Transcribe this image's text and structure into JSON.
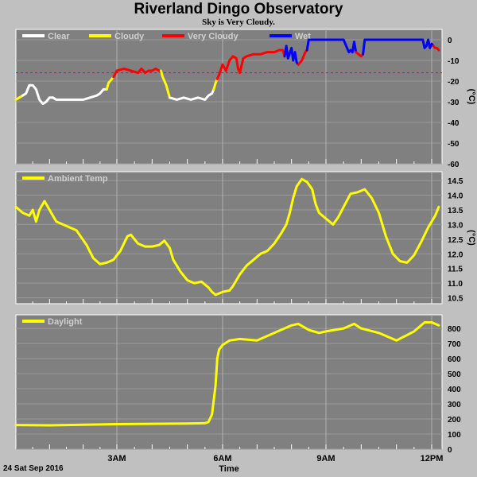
{
  "title": "Riverland Dingo Observatory",
  "subtitle": "Sky is Very Cloudy.",
  "footer": {
    "date": "24 Sat Sep 2016",
    "xlabel": "Time"
  },
  "x_ticks": [
    {
      "label": "3AM",
      "hour": 3
    },
    {
      "label": "6AM",
      "hour": 6
    },
    {
      "label": "9AM",
      "hour": 9
    },
    {
      "label": "12PM",
      "hour": 12
    }
  ],
  "chart_data": [
    {
      "type": "line",
      "id": "sky",
      "xlim": [
        0,
        12.25
      ],
      "ylim": [
        -60,
        5
      ],
      "ylabel": "(°C)",
      "yticks": [
        0,
        -10,
        -20,
        -30,
        -40,
        -50,
        -60
      ],
      "grid": true,
      "threshold_line": {
        "y": -16,
        "color": "#ff0000",
        "style": "dashed"
      },
      "legend": [
        {
          "name": "Clear",
          "color": "#ffffff"
        },
        {
          "name": "Cloudy",
          "color": "#ffff00"
        },
        {
          "name": "Very Cloudy",
          "color": "#ff0000"
        },
        {
          "name": "Wet",
          "color": "#0000ff"
        }
      ],
      "series": [
        {
          "name": "Cloudy",
          "color": "#ffff00",
          "points": [
            [
              0.0,
              -29
            ],
            [
              0.1,
              -28
            ],
            [
              0.2,
              -27
            ]
          ]
        },
        {
          "name": "Clear",
          "color": "#ffffff",
          "points": [
            [
              0.2,
              -27
            ],
            [
              0.3,
              -26
            ],
            [
              0.4,
              -22
            ],
            [
              0.5,
              -22
            ],
            [
              0.6,
              -24
            ],
            [
              0.7,
              -29
            ],
            [
              0.8,
              -31
            ],
            [
              0.9,
              -30
            ],
            [
              1.0,
              -28
            ],
            [
              1.1,
              -28
            ],
            [
              1.2,
              -29
            ],
            [
              1.5,
              -29
            ],
            [
              1.8,
              -29
            ],
            [
              2.0,
              -29
            ],
            [
              2.2,
              -28
            ],
            [
              2.4,
              -27
            ],
            [
              2.5,
              -26
            ],
            [
              2.6,
              -24
            ],
            [
              2.7,
              -24
            ]
          ]
        },
        {
          "name": "Cloudy",
          "color": "#ffff00",
          "points": [
            [
              2.7,
              -24
            ],
            [
              2.75,
              -21
            ],
            [
              2.85,
              -19
            ],
            [
              2.9,
              -18
            ]
          ]
        },
        {
          "name": "Very Cloudy",
          "color": "#ff0000",
          "points": [
            [
              2.9,
              -18
            ],
            [
              3.0,
              -15
            ],
            [
              3.2,
              -14
            ],
            [
              3.4,
              -15
            ],
            [
              3.6,
              -16
            ],
            [
              3.7,
              -14
            ],
            [
              3.8,
              -16
            ],
            [
              3.9,
              -15
            ],
            [
              4.0,
              -15
            ],
            [
              4.1,
              -14
            ],
            [
              4.2,
              -15
            ],
            [
              4.25,
              -15
            ]
          ]
        },
        {
          "name": "Cloudy",
          "color": "#ffff00",
          "points": [
            [
              4.25,
              -15
            ],
            [
              4.3,
              -18
            ],
            [
              4.4,
              -22
            ],
            [
              4.5,
              -28
            ]
          ]
        },
        {
          "name": "Clear",
          "color": "#ffffff",
          "points": [
            [
              4.5,
              -28
            ],
            [
              4.7,
              -29
            ],
            [
              4.9,
              -28
            ],
            [
              5.1,
              -29
            ],
            [
              5.3,
              -28
            ],
            [
              5.5,
              -29
            ],
            [
              5.6,
              -27
            ],
            [
              5.7,
              -26
            ],
            [
              5.75,
              -24
            ]
          ]
        },
        {
          "name": "Cloudy",
          "color": "#ffff00",
          "points": [
            [
              5.75,
              -24
            ],
            [
              5.8,
              -21
            ],
            [
              5.85,
              -19
            ]
          ]
        },
        {
          "name": "Very Cloudy",
          "color": "#ff0000",
          "points": [
            [
              5.85,
              -19
            ],
            [
              5.9,
              -17
            ],
            [
              6.0,
              -12
            ],
            [
              6.1,
              -15
            ],
            [
              6.2,
              -10
            ],
            [
              6.3,
              -8
            ],
            [
              6.4,
              -9
            ],
            [
              6.45,
              -14
            ],
            [
              6.5,
              -16
            ],
            [
              6.6,
              -9
            ],
            [
              6.7,
              -8
            ],
            [
              6.9,
              -7
            ],
            [
              7.1,
              -7
            ],
            [
              7.3,
              -6
            ],
            [
              7.5,
              -6
            ],
            [
              7.65,
              -5
            ],
            [
              7.75,
              -5
            ],
            [
              7.8,
              -8
            ]
          ]
        },
        {
          "name": "Wet",
          "color": "#0000ff",
          "points": [
            [
              7.8,
              -8
            ],
            [
              7.85,
              -3
            ],
            [
              7.9,
              -9
            ],
            [
              8.0,
              -4
            ],
            [
              8.05,
              -10
            ],
            [
              8.1,
              -6
            ],
            [
              8.15,
              -11
            ],
            [
              8.2,
              -12
            ]
          ]
        },
        {
          "name": "Very Cloudy",
          "color": "#ff0000",
          "points": [
            [
              8.2,
              -12
            ],
            [
              8.3,
              -10
            ],
            [
              8.4,
              -6
            ],
            [
              8.45,
              -5
            ]
          ]
        },
        {
          "name": "Wet",
          "color": "#0000ff",
          "points": [
            [
              8.45,
              -5
            ],
            [
              8.5,
              0
            ],
            [
              9.0,
              0
            ],
            [
              9.5,
              0
            ],
            [
              9.6,
              -4
            ],
            [
              9.65,
              -6
            ],
            [
              9.7,
              -5
            ],
            [
              9.75,
              -6
            ],
            [
              9.8,
              -1
            ],
            [
              9.85,
              -6
            ]
          ]
        },
        {
          "name": "Very Cloudy",
          "color": "#ff0000",
          "points": [
            [
              9.85,
              -6
            ],
            [
              10.0,
              -8
            ],
            [
              10.05,
              -7
            ]
          ]
        },
        {
          "name": "Wet",
          "color": "#0000ff",
          "points": [
            [
              10.05,
              -7
            ],
            [
              10.1,
              0
            ],
            [
              10.5,
              0
            ],
            [
              11.0,
              0
            ],
            [
              11.5,
              0
            ],
            [
              11.75,
              0
            ],
            [
              11.8,
              -4
            ],
            [
              11.85,
              -3
            ],
            [
              11.9,
              0
            ],
            [
              11.95,
              -4
            ],
            [
              12.0,
              -2
            ],
            [
              12.05,
              -3
            ]
          ]
        },
        {
          "name": "Very Cloudy",
          "color": "#ff0000",
          "points": [
            [
              12.05,
              -3
            ],
            [
              12.1,
              -4
            ],
            [
              12.15,
              -4
            ],
            [
              12.2,
              -5
            ]
          ]
        }
      ]
    },
    {
      "type": "line",
      "id": "ambient",
      "xlim": [
        0,
        12.25
      ],
      "ylim": [
        10.3,
        14.8
      ],
      "ylabel": "(°C)",
      "yticks": [
        10.5,
        11.0,
        11.5,
        12.0,
        12.5,
        13.0,
        13.5,
        14.0,
        14.5
      ],
      "grid": true,
      "legend": [
        {
          "name": "Ambient Temp",
          "color": "#ffff00"
        }
      ],
      "series": [
        {
          "name": "Ambient Temp",
          "color": "#ffff00",
          "points": [
            [
              0.0,
              13.6
            ],
            [
              0.2,
              13.4
            ],
            [
              0.4,
              13.3
            ],
            [
              0.5,
              13.5
            ],
            [
              0.6,
              13.1
            ],
            [
              0.7,
              13.5
            ],
            [
              0.85,
              13.8
            ],
            [
              1.0,
              13.5
            ],
            [
              1.2,
              13.1
            ],
            [
              1.5,
              12.95
            ],
            [
              1.8,
              12.8
            ],
            [
              2.1,
              12.3
            ],
            [
              2.3,
              11.85
            ],
            [
              2.5,
              11.65
            ],
            [
              2.7,
              11.7
            ],
            [
              2.9,
              11.8
            ],
            [
              3.1,
              12.1
            ],
            [
              3.3,
              12.6
            ],
            [
              3.4,
              12.65
            ],
            [
              3.6,
              12.35
            ],
            [
              3.8,
              12.25
            ],
            [
              4.0,
              12.25
            ],
            [
              4.2,
              12.3
            ],
            [
              4.35,
              12.45
            ],
            [
              4.5,
              12.2
            ],
            [
              4.6,
              11.8
            ],
            [
              4.8,
              11.4
            ],
            [
              5.0,
              11.1
            ],
            [
              5.2,
              11.0
            ],
            [
              5.4,
              11.05
            ],
            [
              5.6,
              10.85
            ],
            [
              5.7,
              10.7
            ],
            [
              5.8,
              10.6
            ],
            [
              6.0,
              10.7
            ],
            [
              6.2,
              10.75
            ],
            [
              6.3,
              10.9
            ],
            [
              6.5,
              11.3
            ],
            [
              6.7,
              11.6
            ],
            [
              6.9,
              11.8
            ],
            [
              7.1,
              12.0
            ],
            [
              7.3,
              12.1
            ],
            [
              7.5,
              12.35
            ],
            [
              7.7,
              12.7
            ],
            [
              7.85,
              13.0
            ],
            [
              7.95,
              13.4
            ],
            [
              8.05,
              13.9
            ],
            [
              8.15,
              14.3
            ],
            [
              8.3,
              14.55
            ],
            [
              8.45,
              14.45
            ],
            [
              8.6,
              14.2
            ],
            [
              8.7,
              13.7
            ],
            [
              8.8,
              13.4
            ],
            [
              9.0,
              13.2
            ],
            [
              9.2,
              13.0
            ],
            [
              9.35,
              13.25
            ],
            [
              9.5,
              13.6
            ],
            [
              9.7,
              14.05
            ],
            [
              9.9,
              14.1
            ],
            [
              10.1,
              14.2
            ],
            [
              10.3,
              13.9
            ],
            [
              10.5,
              13.4
            ],
            [
              10.7,
              12.6
            ],
            [
              10.9,
              12.0
            ],
            [
              11.1,
              11.75
            ],
            [
              11.3,
              11.7
            ],
            [
              11.5,
              11.95
            ],
            [
              11.7,
              12.4
            ],
            [
              11.9,
              12.9
            ],
            [
              12.1,
              13.3
            ],
            [
              12.2,
              13.6
            ]
          ]
        }
      ]
    },
    {
      "type": "line",
      "id": "daylight",
      "xlim": [
        0,
        12.25
      ],
      "ylim": [
        0,
        890
      ],
      "ylabel": "",
      "yticks": [
        0,
        100,
        200,
        300,
        400,
        500,
        600,
        700,
        800
      ],
      "grid": true,
      "legend": [
        {
          "name": "Daylight",
          "color": "#ffff00"
        }
      ],
      "series": [
        {
          "name": "Daylight",
          "color": "#ffff00",
          "points": [
            [
              0.0,
              160
            ],
            [
              1.0,
              158
            ],
            [
              2.0,
              162
            ],
            [
              3.0,
              166
            ],
            [
              4.0,
              168
            ],
            [
              5.0,
              170
            ],
            [
              5.5,
              172
            ],
            [
              5.6,
              180
            ],
            [
              5.7,
              230
            ],
            [
              5.8,
              420
            ],
            [
              5.85,
              600
            ],
            [
              5.9,
              660
            ],
            [
              6.0,
              690
            ],
            [
              6.2,
              720
            ],
            [
              6.5,
              730
            ],
            [
              7.0,
              720
            ],
            [
              7.5,
              770
            ],
            [
              8.0,
              820
            ],
            [
              8.2,
              830
            ],
            [
              8.5,
              790
            ],
            [
              8.8,
              770
            ],
            [
              9.0,
              780
            ],
            [
              9.5,
              800
            ],
            [
              9.8,
              830
            ],
            [
              10.0,
              800
            ],
            [
              10.5,
              770
            ],
            [
              11.0,
              720
            ],
            [
              11.5,
              780
            ],
            [
              11.8,
              840
            ],
            [
              12.0,
              840
            ],
            [
              12.2,
              820
            ]
          ]
        }
      ]
    }
  ]
}
